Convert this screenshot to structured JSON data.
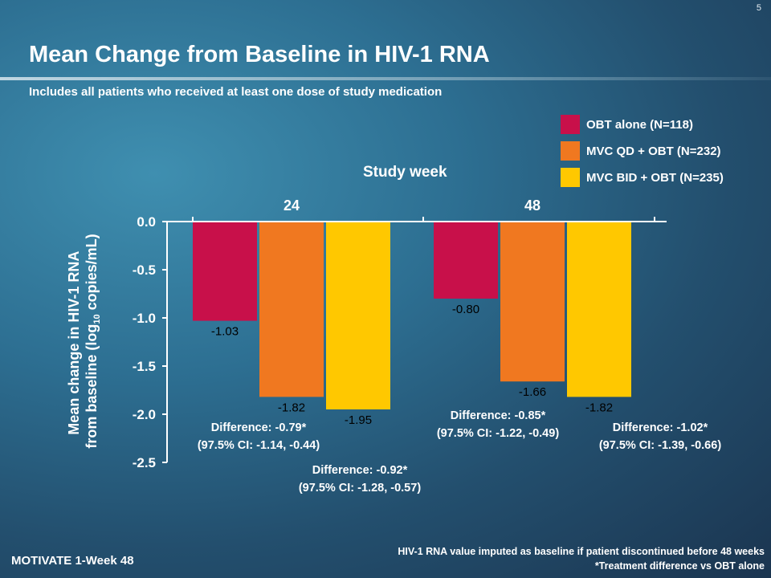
{
  "slide_number": "5",
  "title": "Mean Change from Baseline in HIV-1 RNA",
  "subtitle": "Includes all patients who received at least one dose of study medication",
  "legend": [
    {
      "label": "OBT alone (N=118)",
      "color": "#c8104a"
    },
    {
      "label": "MVC QD + OBT (N=232)",
      "color": "#f07820"
    },
    {
      "label": "MVC BID + OBT  (N=235)",
      "color": "#ffc800"
    }
  ],
  "study_week_label": "Study week",
  "chart_data": {
    "type": "bar",
    "categories": [
      "24",
      "48"
    ],
    "series": [
      {
        "name": "OBT alone (N=118)",
        "values": [
          -1.03,
          -0.8
        ],
        "labels": [
          "-1.03",
          "-0.80"
        ],
        "color": "#c8104a"
      },
      {
        "name": "MVC QD + OBT (N=232)",
        "values": [
          -1.82,
          -1.66
        ],
        "labels": [
          "-1.82",
          "-1.66"
        ],
        "color": "#f07820"
      },
      {
        "name": "MVC BID + OBT  (N=235)",
        "values": [
          -1.95,
          -1.82
        ],
        "labels": [
          "-1.95",
          "-1.82"
        ],
        "color": "#ffc800"
      }
    ],
    "y_tick_labels": [
      "0.0",
      "-0.5",
      "-1.0",
      "-1.5",
      "-2.0",
      "-2.5"
    ],
    "ylim": [
      -2.5,
      0
    ],
    "ylabel_line1": "Mean change in HIV-1 RNA",
    "ylabel_line2_pre": "from baseline (log",
    "ylabel_line2_sub": "10",
    "ylabel_line2_post": " copies/mL)",
    "xlabel": "Study week",
    "grid": false,
    "legend_position": "top-right"
  },
  "differences": [
    {
      "line1": "Difference: -0.79*",
      "line2": "(97.5% CI: -1.14, -0.44)"
    },
    {
      "line1": "Difference: -0.92*",
      "line2": "(97.5% CI: -1.28, -0.57)"
    },
    {
      "line1": "Difference: -0.85*",
      "line2": "(97.5% CI: -1.22, -0.49)"
    },
    {
      "line1": "Difference: -1.02*",
      "line2": "(97.5% CI: -1.39, -0.66)"
    }
  ],
  "footnote_1": "HIV-1 RNA value imputed as baseline if patient discontinued before 48 weeks",
  "footnote_2": "*Treatment difference vs OBT alone",
  "footer_left": "MOTIVATE 1-Week 48"
}
